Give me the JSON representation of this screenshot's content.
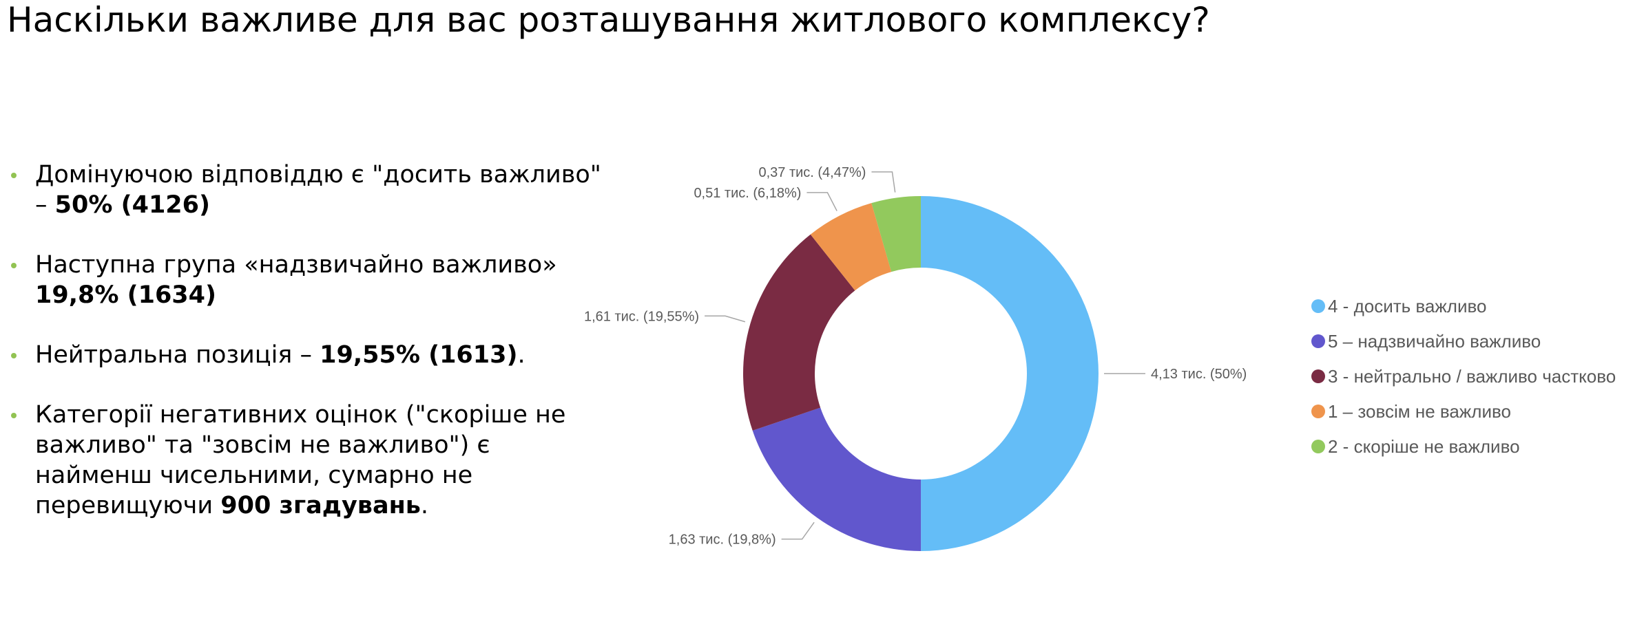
{
  "title": "Наскільки важливе для вас розташування житлового комплексу?",
  "bullets": [
    {
      "text": "Домінуючою відповіддю є \"досить важливо\" – ",
      "bold": "50% (4126)",
      "tail": ""
    },
    {
      "text": "Наступна група «надзвичайно важливо» ",
      "bold": "19,8% (1634)",
      "tail": ""
    },
    {
      "text": "Нейтральна позиція – ",
      "bold": "19,55% (1613)",
      "tail": "."
    },
    {
      "text": "Категорії негативних оцінок (\"скоріше не важливо\" та \"зовсім не важливо\") є найменш чисельними, сумарно не перевищуючи ",
      "bold": "900 згадувань",
      "tail": "."
    }
  ],
  "colors": {
    "bullet": "#92c353"
  },
  "chart_data": {
    "type": "pie",
    "style": "donut",
    "title": "",
    "legend_position": "right",
    "slices": [
      {
        "name": "4 - досить важливо",
        "value": 4126,
        "percent": 50,
        "label": "4,13 тис. (50%)",
        "color": "#64bdf7"
      },
      {
        "name": "5 – надзвичайно важливо",
        "value": 1634,
        "percent": 19.8,
        "label": "1,63 тис. (19,8%)",
        "color": "#6157cd"
      },
      {
        "name": "3 - нейтрально / важливо частково",
        "value": 1613,
        "percent": 19.55,
        "label": "1,61 тис. (19,55%)",
        "color": "#7a2b43"
      },
      {
        "name": "1 – зовсім не важливо",
        "value": 510,
        "percent": 6.18,
        "label": "0,51 тис. (6,18%)",
        "color": "#ef944c"
      },
      {
        "name": "2 - скоріше не важливо",
        "value": 370,
        "percent": 4.47,
        "label": "0,37 тис. (4,47%)",
        "color": "#92c95d"
      }
    ]
  }
}
